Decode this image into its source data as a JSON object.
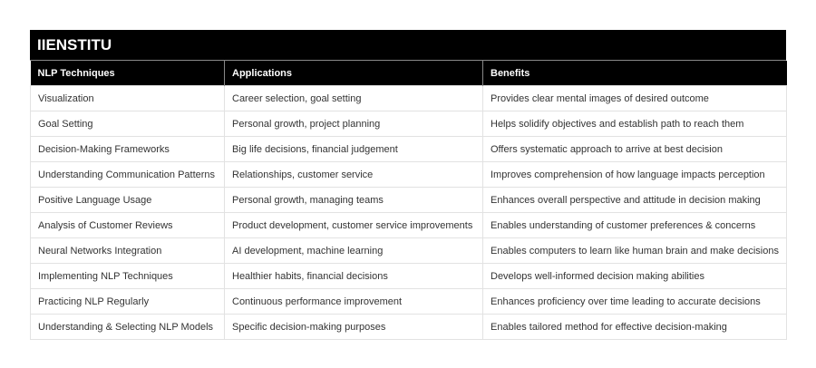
{
  "title": "IIENSTITU",
  "columns": [
    "NLP Techniques",
    "Applications",
    "Benefits"
  ],
  "rows": [
    [
      "Visualization",
      "Career selection, goal setting",
      "Provides clear mental images of desired outcome"
    ],
    [
      "Goal Setting",
      "Personal growth, project planning",
      "Helps solidify objectives and establish path to reach them"
    ],
    [
      "Decision-Making Frameworks",
      "Big life decisions, financial judgement",
      "Offers systematic approach to arrive at best decision"
    ],
    [
      "Understanding Communication Patterns",
      "Relationships, customer service",
      "Improves comprehension of how language impacts perception"
    ],
    [
      "Positive Language Usage",
      "Personal growth, managing teams",
      "Enhances overall perspective and attitude in decision making"
    ],
    [
      "Analysis of Customer Reviews",
      "Product development, customer service improvements",
      "Enables understanding of customer preferences & concerns"
    ],
    [
      "Neural Networks Integration",
      "AI development, machine learning",
      "Enables computers to learn like human brain and make decisions"
    ],
    [
      "Implementing NLP Techniques",
      "Healthier habits, financial decisions",
      "Develops well-informed decision making abilities"
    ],
    [
      "Practicing NLP Regularly",
      "Continuous performance improvement",
      "Enhances proficiency over time leading to accurate decisions"
    ],
    [
      "Understanding & Selecting NLP Models",
      "Specific decision-making purposes",
      "Enables tailored method for effective decision-making"
    ]
  ]
}
